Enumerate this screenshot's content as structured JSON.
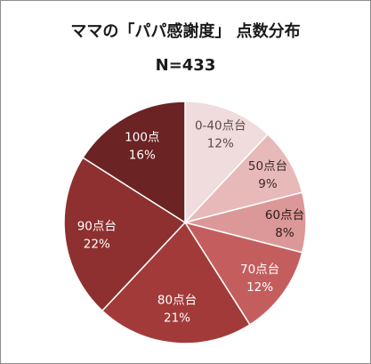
{
  "chart_data": {
    "type": "pie",
    "title": "ママの「パパ感謝度」 点数分布",
    "subtitle": "N=433",
    "slices": [
      {
        "label": "0-40点台",
        "value": 12,
        "value_label": "12%",
        "color": "#f0dcdc",
        "text_color": "#5a4a4a"
      },
      {
        "label": "50点台",
        "value": 9,
        "value_label": "9%",
        "color": "#e8b9b9",
        "text_color": "#3a2a2a"
      },
      {
        "label": "60点台",
        "value": 8,
        "value_label": "8%",
        "color": "#dc9898",
        "text_color": "#2a1a1a"
      },
      {
        "label": "70点台",
        "value": 12,
        "value_label": "12%",
        "color": "#c45e5e",
        "text_color": "#ffffff"
      },
      {
        "label": "80点台",
        "value": 21,
        "value_label": "21%",
        "color": "#a33a3a",
        "text_color": "#ffffff"
      },
      {
        "label": "90点台",
        "value": 22,
        "value_label": "22%",
        "color": "#8e3030",
        "text_color": "#ffffff"
      },
      {
        "label": "100点",
        "value": 16,
        "value_label": "16%",
        "color": "#6b2323",
        "text_color": "#ffffff"
      }
    ],
    "start_angle": "12 o'clock",
    "direction": "clockwise",
    "legend": "none"
  }
}
